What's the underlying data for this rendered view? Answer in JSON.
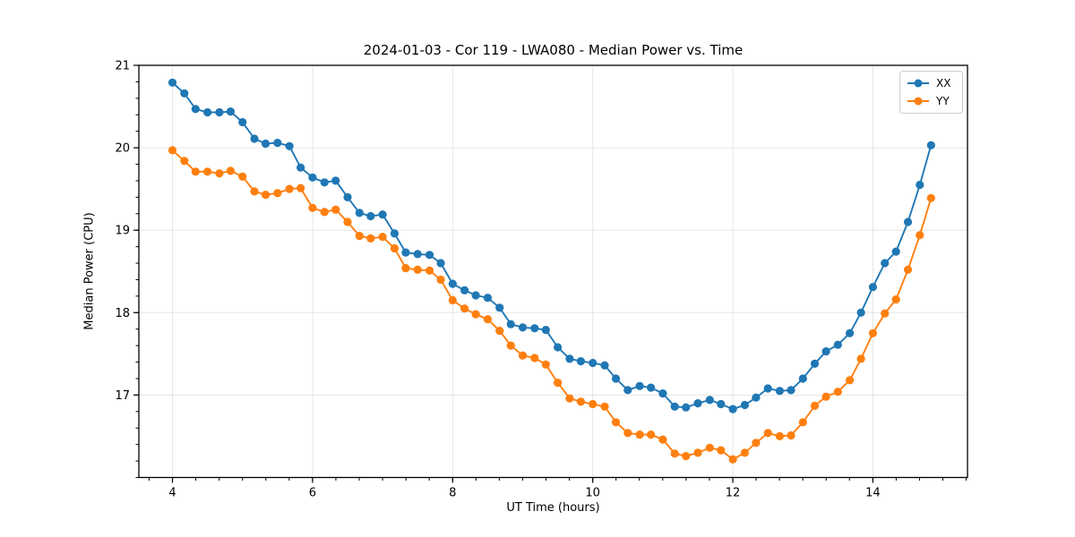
{
  "title": "2024-01-03 - Cor 119 - LWA080 - Median Power vs. Time",
  "chart_data": {
    "type": "line",
    "title": "2024-01-03 - Cor 119 - LWA080 - Median Power vs. Time",
    "xlabel": "UT Time (hours)",
    "ylabel": "Median Power (CPU)",
    "xlim": [
      3.52,
      15.35
    ],
    "ylim": [
      16.0,
      21.0
    ],
    "x_ticks": [
      4,
      6,
      8,
      10,
      12,
      14
    ],
    "x_minor_step": 0.3333,
    "y_ticks": [
      17,
      18,
      19,
      20,
      21
    ],
    "y_minor_step": 0.2,
    "grid": true,
    "grid_color": "#e5e5e5",
    "legend_position": "upper right",
    "marker": "circle",
    "x": [
      4.0,
      4.17,
      4.33,
      4.5,
      4.67,
      4.83,
      5.0,
      5.17,
      5.33,
      5.5,
      5.67,
      5.83,
      6.0,
      6.17,
      6.33,
      6.5,
      6.67,
      6.83,
      7.0,
      7.17,
      7.33,
      7.5,
      7.67,
      7.83,
      8.0,
      8.17,
      8.33,
      8.5,
      8.67,
      8.83,
      9.0,
      9.17,
      9.33,
      9.5,
      9.67,
      9.83,
      10.0,
      10.17,
      10.33,
      10.5,
      10.67,
      10.83,
      11.0,
      11.17,
      11.33,
      11.5,
      11.67,
      11.83,
      12.0,
      12.17,
      12.33,
      12.5,
      12.67,
      12.83,
      13.0,
      13.17,
      13.33,
      13.5,
      13.67,
      13.83,
      14.0,
      14.17,
      14.33,
      14.5,
      14.67,
      14.83
    ],
    "series": [
      {
        "name": "XX",
        "color": "#1f77b4",
        "values": [
          20.79,
          20.66,
          20.47,
          20.43,
          20.43,
          20.44,
          20.31,
          20.11,
          20.05,
          20.06,
          20.02,
          19.76,
          19.64,
          19.58,
          19.6,
          19.4,
          19.21,
          19.17,
          19.19,
          18.96,
          18.73,
          18.71,
          18.7,
          18.6,
          18.35,
          18.27,
          18.21,
          18.18,
          18.06,
          17.86,
          17.82,
          17.81,
          17.79,
          17.58,
          17.44,
          17.41,
          17.39,
          17.36,
          17.2,
          17.06,
          17.11,
          17.09,
          17.02,
          16.86,
          16.85,
          16.9,
          16.94,
          16.89,
          16.83,
          16.88,
          16.97,
          17.08,
          17.05,
          17.06,
          17.2,
          17.38,
          17.53,
          17.61,
          17.75,
          18.0,
          18.31,
          18.6,
          18.74,
          19.1,
          19.55,
          20.03
        ]
      },
      {
        "name": "YY",
        "color": "#ff7f0e",
        "values": [
          19.97,
          19.84,
          19.71,
          19.71,
          19.69,
          19.72,
          19.65,
          19.47,
          19.43,
          19.45,
          19.5,
          19.51,
          19.27,
          19.22,
          19.25,
          19.1,
          18.93,
          18.9,
          18.92,
          18.78,
          18.54,
          18.52,
          18.51,
          18.4,
          18.15,
          18.05,
          17.98,
          17.92,
          17.78,
          17.6,
          17.48,
          17.45,
          17.37,
          17.15,
          16.96,
          16.92,
          16.89,
          16.86,
          16.67,
          16.54,
          16.52,
          16.52,
          16.46,
          16.29,
          16.26,
          16.3,
          16.36,
          16.33,
          16.22,
          16.3,
          16.42,
          16.54,
          16.5,
          16.51,
          16.67,
          16.87,
          16.98,
          17.04,
          17.18,
          17.44,
          17.75,
          17.99,
          18.16,
          18.52,
          18.94,
          19.39
        ]
      }
    ]
  }
}
